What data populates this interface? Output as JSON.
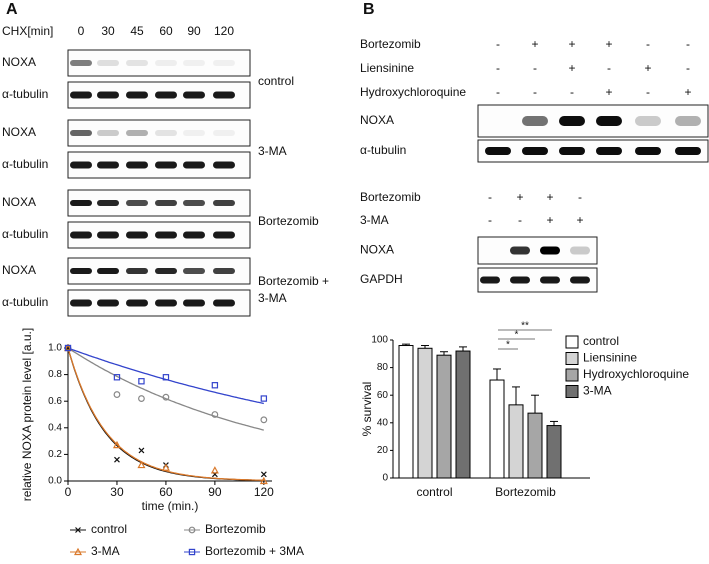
{
  "panel_a": {
    "label": "A",
    "treatment_label": "CHX[min]",
    "times": [
      "0",
      "30",
      "45",
      "60",
      "90",
      "120"
    ],
    "blots": [
      {
        "condition": [
          "control"
        ],
        "rows": [
          "NOXA",
          "α-tubulin"
        ]
      },
      {
        "condition": [
          "3-MA"
        ],
        "rows": [
          "NOXA",
          "α-tubulin"
        ]
      },
      {
        "condition": [
          "Bortezomib"
        ],
        "rows": [
          "NOXA",
          "α-tubulin"
        ]
      },
      {
        "condition": [
          "Bortezomib +",
          "3-MA"
        ],
        "rows": [
          "NOXA",
          "α-tubulin"
        ]
      }
    ],
    "chart_data": {
      "type": "line",
      "ylabel": "relative NOXA protein level [a.u.]",
      "xlabel": "time (min.)",
      "x": [
        0,
        30,
        45,
        60,
        90,
        120
      ],
      "series": [
        {
          "name": "control",
          "color": "#111111",
          "marker": "x",
          "values": [
            1.0,
            0.16,
            0.23,
            0.12,
            0.05,
            0.05
          ]
        },
        {
          "name": "Bortezomib",
          "color": "#888888",
          "marker": "circle",
          "values": [
            1.0,
            0.65,
            0.62,
            0.63,
            0.5,
            0.46
          ]
        },
        {
          "name": "3-MA",
          "color": "#d9782a",
          "marker": "triangle",
          "values": [
            1.0,
            0.27,
            0.12,
            0.1,
            0.08,
            0.0
          ]
        },
        {
          "name": "Bortezomib + 3MA",
          "color": "#3344cc",
          "marker": "square",
          "values": [
            1.0,
            0.78,
            0.75,
            0.78,
            0.72,
            0.62
          ]
        }
      ],
      "xlim": [
        0,
        125
      ],
      "xticks": [
        0,
        30,
        60,
        90,
        120
      ],
      "ylim": [
        0,
        1.0
      ],
      "yticks": [
        {
          "value": 0,
          "label": "0.0"
        },
        {
          "value": 0.2,
          "label": "0.2"
        },
        {
          "value": 0.4,
          "label": "0.4"
        },
        {
          "value": 0.6,
          "label": "0.6"
        },
        {
          "value": 0.8,
          "label": "0.8"
        },
        {
          "value": 1.0,
          "label": "1.0"
        }
      ]
    }
  },
  "panel_b": {
    "label": "B",
    "blot1": {
      "treatments": [
        {
          "name": "Bortezomib",
          "signs": [
            "-",
            "+",
            "+",
            "+",
            "-",
            "-"
          ]
        },
        {
          "name": "Liensinine",
          "signs": [
            "-",
            "-",
            "+",
            "-",
            "+",
            "-"
          ]
        },
        {
          "name": "Hydroxychloroquine",
          "signs": [
            "-",
            "-",
            "-",
            "+",
            "-",
            "+"
          ]
        }
      ],
      "rows": [
        "NOXA",
        "α-tubulin"
      ]
    },
    "blot2": {
      "treatments": [
        {
          "name": "Bortezomib",
          "signs": [
            "-",
            "+",
            "+",
            "-"
          ]
        },
        {
          "name": "3-MA",
          "signs": [
            "-",
            "-",
            "+",
            "+"
          ]
        }
      ],
      "rows": [
        "NOXA",
        "GAPDH"
      ]
    },
    "chart_data": {
      "type": "bar",
      "ylabel": "% survival",
      "categories": [
        "control",
        "Bortezomib"
      ],
      "series": [
        {
          "name": "control",
          "color": "#ffffff",
          "values": [
            96,
            71
          ],
          "errors": [
            1,
            8
          ]
        },
        {
          "name": "Liensinine",
          "color": "#d4d4d4",
          "values": [
            94,
            53
          ],
          "errors": [
            2,
            13
          ]
        },
        {
          "name": "Hydroxychloroquine",
          "color": "#a6a6a6",
          "values": [
            89,
            47
          ],
          "errors": [
            2.5,
            13
          ]
        },
        {
          "name": "3-MA",
          "color": "#707070",
          "values": [
            92,
            38
          ],
          "errors": [
            3,
            3
          ]
        }
      ],
      "ylim": [
        0,
        100
      ],
      "yticks": [
        0,
        20,
        40,
        60,
        80,
        100
      ],
      "annotations": [
        "**",
        "*",
        "*"
      ]
    }
  }
}
